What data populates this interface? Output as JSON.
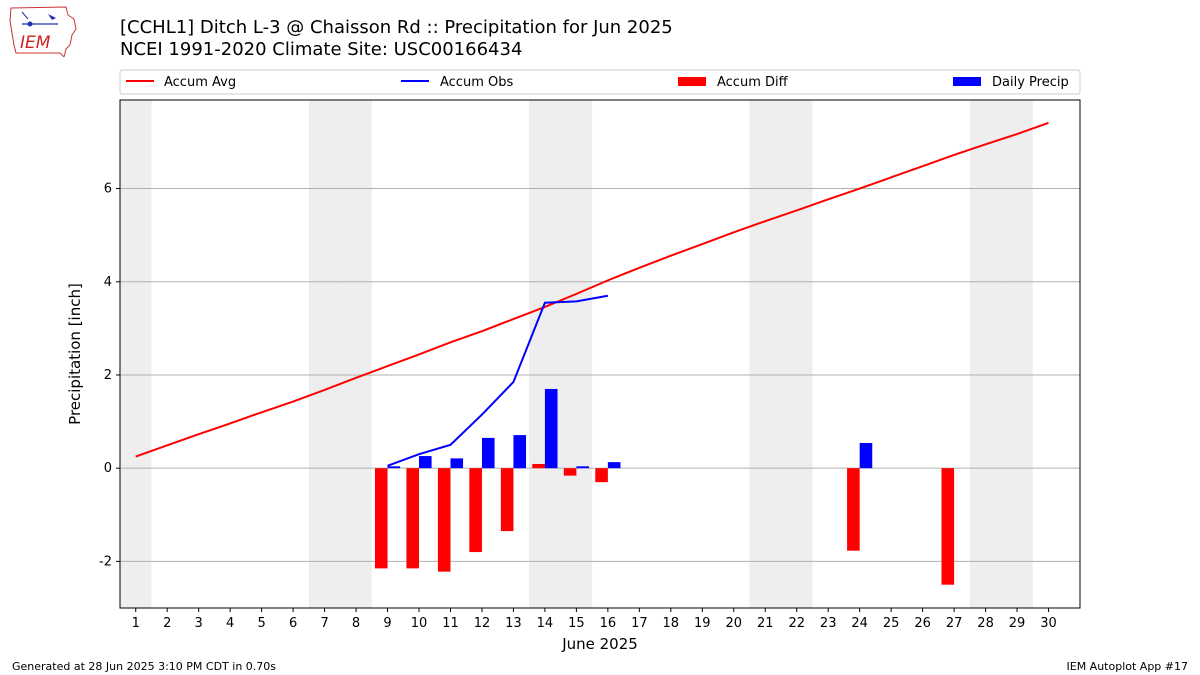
{
  "header": {
    "title": "[CCHL1] Ditch L-3 @ Chaisson Rd :: Precipitation for Jun 2025",
    "subtitle": "NCEI 1991-2020 Climate Site: USC00166434"
  },
  "logo": {
    "text": "IEM"
  },
  "footer": {
    "generated": "Generated at 28 Jun 2025 3:10 PM CDT in 0.70s",
    "app": "IEM Autoplot App #17"
  },
  "colors": {
    "avg": "#ff0000",
    "obs": "#0000ff",
    "diff": "#ff0000",
    "daily": "#0000ff",
    "weekend_shade": "#eeeeee",
    "grid": "#b0b0b0"
  },
  "chart_data": {
    "type": "bar",
    "xlabel": "June 2025",
    "ylabel": "Precipitation [inch]",
    "xlim": [
      0.5,
      31.0
    ],
    "ylim": [
      -3.0,
      7.9
    ],
    "yticks": [
      -2,
      0,
      2,
      4,
      6
    ],
    "grid": "horizontal",
    "legend": "top",
    "days": [
      1,
      2,
      3,
      4,
      5,
      6,
      7,
      8,
      9,
      10,
      11,
      12,
      13,
      14,
      15,
      16,
      17,
      18,
      19,
      20,
      21,
      22,
      23,
      24,
      25,
      26,
      27,
      28,
      29,
      30
    ],
    "weekend_days": [
      1,
      7,
      8,
      14,
      15,
      21,
      22,
      28,
      29
    ],
    "legend_entries": [
      {
        "label": "Accum Avg",
        "kind": "line",
        "color": "#ff0000"
      },
      {
        "label": "Accum Obs",
        "kind": "line",
        "color": "#0000ff"
      },
      {
        "label": "Accum Diff",
        "kind": "bar",
        "color": "#ff0000"
      },
      {
        "label": "Daily Precip",
        "kind": "bar",
        "color": "#0000ff"
      }
    ],
    "series": [
      {
        "name": "Accum Avg",
        "type": "line",
        "x": [
          1,
          2,
          3,
          4,
          5,
          6,
          7,
          8,
          9,
          10,
          11,
          12,
          13,
          14,
          15,
          16,
          17,
          18,
          19,
          20,
          21,
          22,
          23,
          24,
          25,
          26,
          27,
          28,
          29,
          30
        ],
        "values": [
          0.25,
          0.49,
          0.73,
          0.96,
          1.2,
          1.43,
          1.68,
          1.94,
          2.19,
          2.44,
          2.7,
          2.94,
          3.2,
          3.46,
          3.74,
          4.03,
          4.3,
          4.56,
          4.81,
          5.06,
          5.3,
          5.53,
          5.77,
          6.0,
          6.24,
          6.48,
          6.72,
          6.95,
          7.17,
          7.41
        ]
      },
      {
        "name": "Accum Obs",
        "type": "line",
        "x": [
          9,
          10,
          11,
          12,
          13,
          14,
          15,
          16
        ],
        "values": [
          0.05,
          0.3,
          0.5,
          1.15,
          1.85,
          3.55,
          3.58,
          3.7
        ]
      },
      {
        "name": "Accum Diff",
        "type": "bar",
        "x": [
          9,
          10,
          11,
          12,
          13,
          14,
          15,
          16,
          24,
          27
        ],
        "values": [
          -2.15,
          -2.15,
          -2.22,
          -1.8,
          -1.35,
          0.09,
          -0.16,
          -0.3,
          -1.77,
          -2.5
        ]
      },
      {
        "name": "Daily Precip",
        "type": "bar",
        "x": [
          9,
          10,
          11,
          12,
          13,
          14,
          15,
          16,
          24
        ],
        "values": [
          0.04,
          0.26,
          0.21,
          0.65,
          0.71,
          1.7,
          0.04,
          0.13,
          0.54
        ]
      }
    ]
  }
}
